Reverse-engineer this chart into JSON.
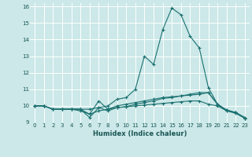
{
  "xlabel": "Humidex (Indice chaleur)",
  "xlim": [
    -0.5,
    23.5
  ],
  "ylim": [
    9,
    16.2
  ],
  "yticks": [
    9,
    10,
    11,
    12,
    13,
    14,
    15,
    16
  ],
  "xticks": [
    0,
    1,
    2,
    3,
    4,
    5,
    6,
    7,
    8,
    9,
    10,
    11,
    12,
    13,
    14,
    15,
    16,
    17,
    18,
    19,
    20,
    21,
    22,
    23
  ],
  "bg_color": "#cce8e8",
  "grid_color": "#ffffff",
  "line_color": "#1a7070",
  "lines": [
    [
      10.0,
      10.0,
      9.8,
      9.8,
      9.8,
      9.8,
      9.8,
      9.9,
      10.0,
      10.4,
      10.5,
      11.0,
      13.0,
      12.5,
      14.6,
      15.9,
      15.5,
      14.2,
      13.5,
      11.1,
      10.1,
      9.7,
      9.6,
      9.3
    ],
    [
      10.0,
      10.0,
      9.8,
      9.8,
      9.8,
      9.8,
      9.3,
      9.9,
      9.7,
      9.9,
      9.95,
      10.1,
      10.2,
      10.3,
      10.45,
      10.5,
      10.6,
      10.7,
      10.8,
      10.8,
      10.1,
      9.75,
      9.6,
      9.25
    ],
    [
      10.0,
      10.0,
      9.8,
      9.8,
      9.8,
      9.8,
      9.5,
      10.3,
      9.8,
      10.0,
      10.1,
      10.2,
      10.3,
      10.4,
      10.5,
      10.55,
      10.6,
      10.65,
      10.7,
      10.8,
      10.1,
      9.75,
      9.6,
      9.25
    ],
    [
      10.0,
      10.0,
      9.8,
      9.8,
      9.8,
      9.7,
      9.5,
      9.7,
      9.8,
      9.9,
      9.95,
      10.0,
      10.05,
      10.1,
      10.15,
      10.2,
      10.25,
      10.3,
      10.3,
      10.1,
      10.0,
      9.7,
      9.55,
      9.25
    ]
  ]
}
